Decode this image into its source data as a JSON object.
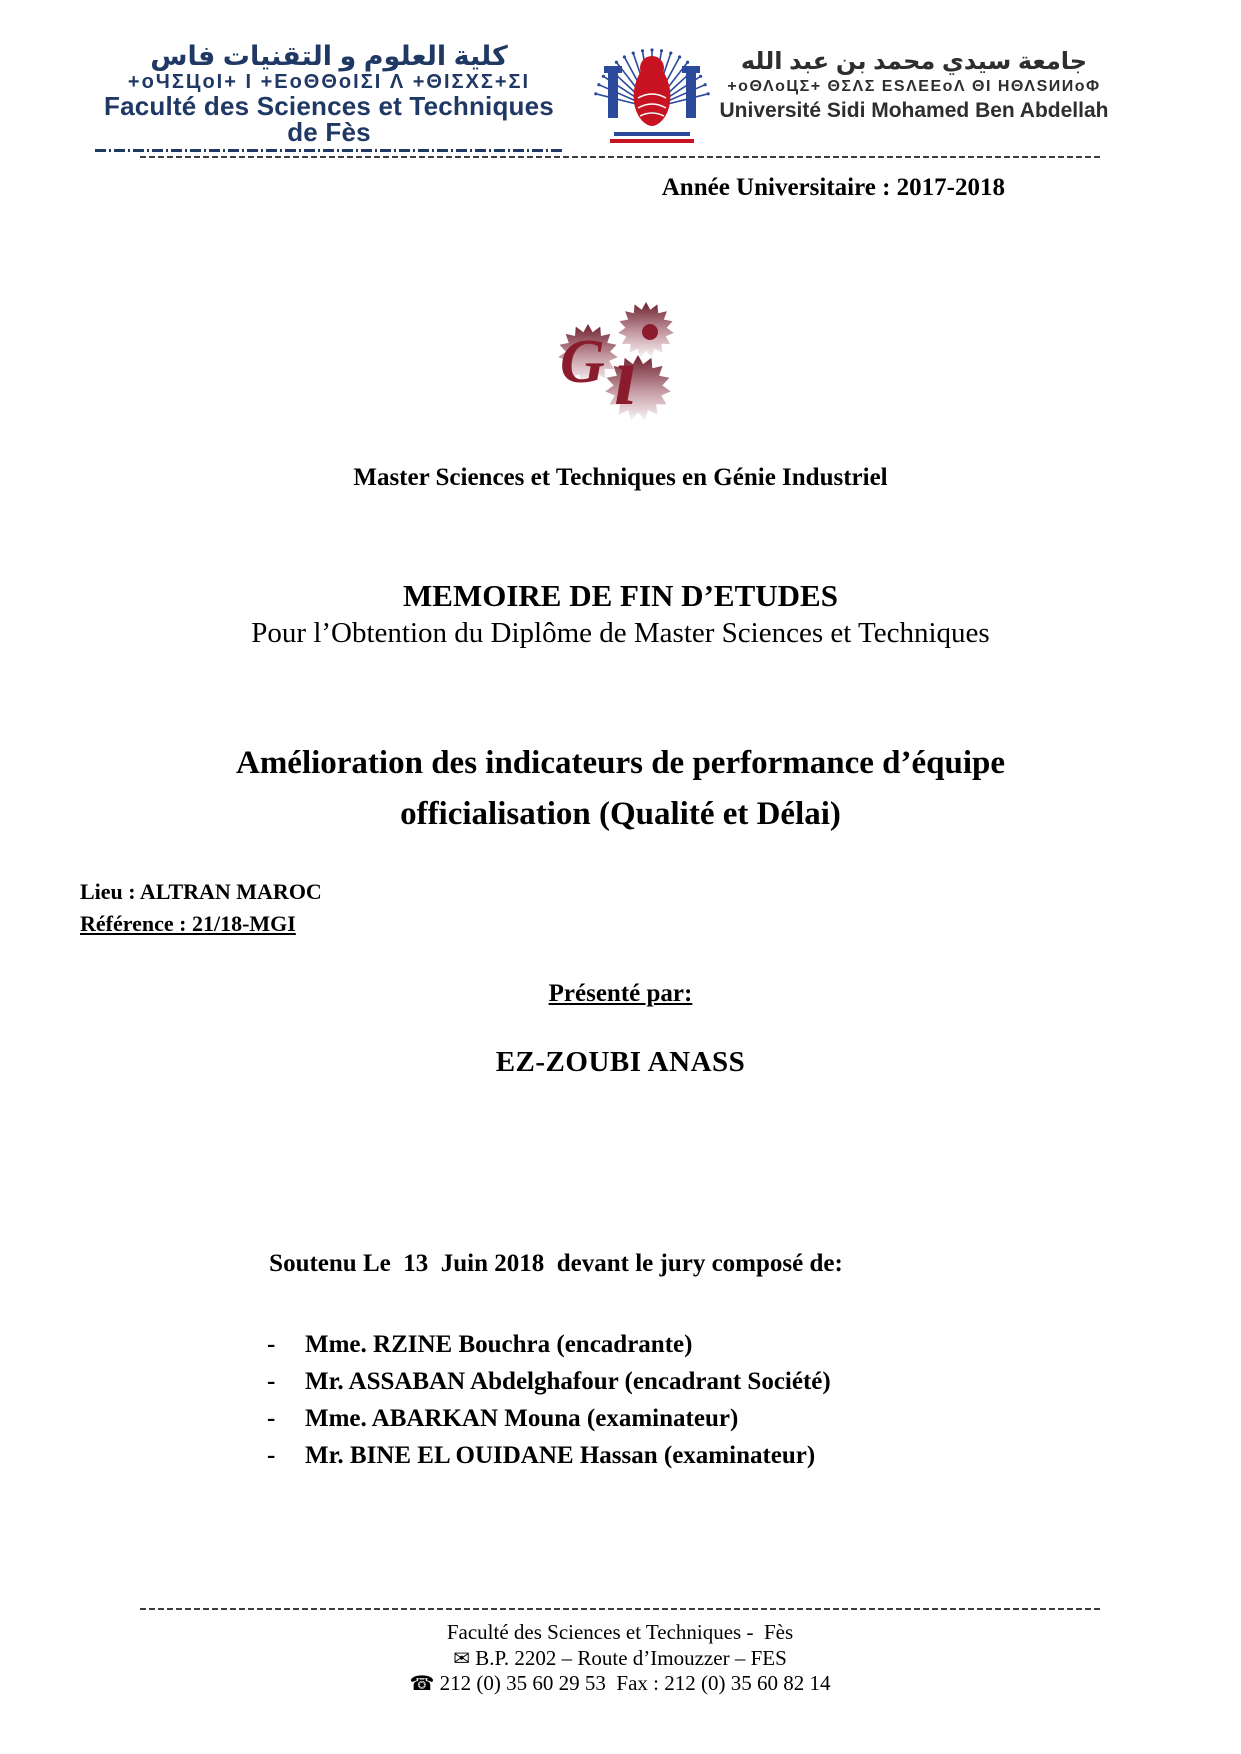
{
  "header": {
    "left": {
      "arabic": "كلية العلوم و التقنيات فاس",
      "tifinagh": "+oЧΣЦoI+ I +ЕoΘΘoIΣI Λ +ΘIΣXΣ+ΣI",
      "latin": "Faculté des Sciences et Techniques de Fès"
    },
    "right": {
      "arabic": "جامعة سيدي محمد بن عبد الله",
      "tifinagh": "+oΘΛoЦΣ+ ΘΣΛΣ ЕSΛЕЕoΛ ΘI ΗΘΛSИИoΦ",
      "latin": "Université Sidi Mohamed Ben Abdellah"
    }
  },
  "annee_line": "Année Universitaire : 2017-2018",
  "gi_logo": {
    "letter_g": "G",
    "letter_i": "ı"
  },
  "master_line": "Master Sciences et Techniques en Génie Industriel",
  "memoire": {
    "title": "MEMOIRE DE FIN D’ETUDES",
    "subtitle": "Pour l’Obtention du Diplôme de Master Sciences et Techniques"
  },
  "thesis_title": {
    "line1": "Amélioration des indicateurs de performance d’équipe",
    "line2": "officialisation (Qualité et Délai)"
  },
  "place": {
    "lieu": "Lieu : ALTRAN MAROC",
    "reference": "Référence : 21/18-MGI"
  },
  "presented": {
    "label": "Présenté par:",
    "author": "EZ-ZOUBI ANASS"
  },
  "defense": {
    "intro": "Soutenu Le  13  Juin 2018  devant le jury composé de:",
    "bullet": "-",
    "jury": [
      "Mme. RZINE Bouchra (encadrante)",
      "Mr. ASSABAN Abdelghafour (encadrant Société)",
      "Mme. ABARKAN Mouna (examinateur)",
      "Mr. BINE EL OUIDANE Hassan (examinateur)"
    ]
  },
  "footer": {
    "line1": "Faculté des Sciences et Techniques -  Fès",
    "line2": "B.P. 2202 – Route d’Imouzzer – FES",
    "line3": "212 (0) 35 60 29 53  Fax : 212 (0) 35 60 82 14"
  },
  "icons": {
    "envelope": "✉",
    "phone": "☎"
  },
  "colors": {
    "header_navy": "#1f3864",
    "emblem_blue": "#2b4a9b",
    "emblem_red": "#c81422",
    "gi_red": "#8b1c2e"
  }
}
